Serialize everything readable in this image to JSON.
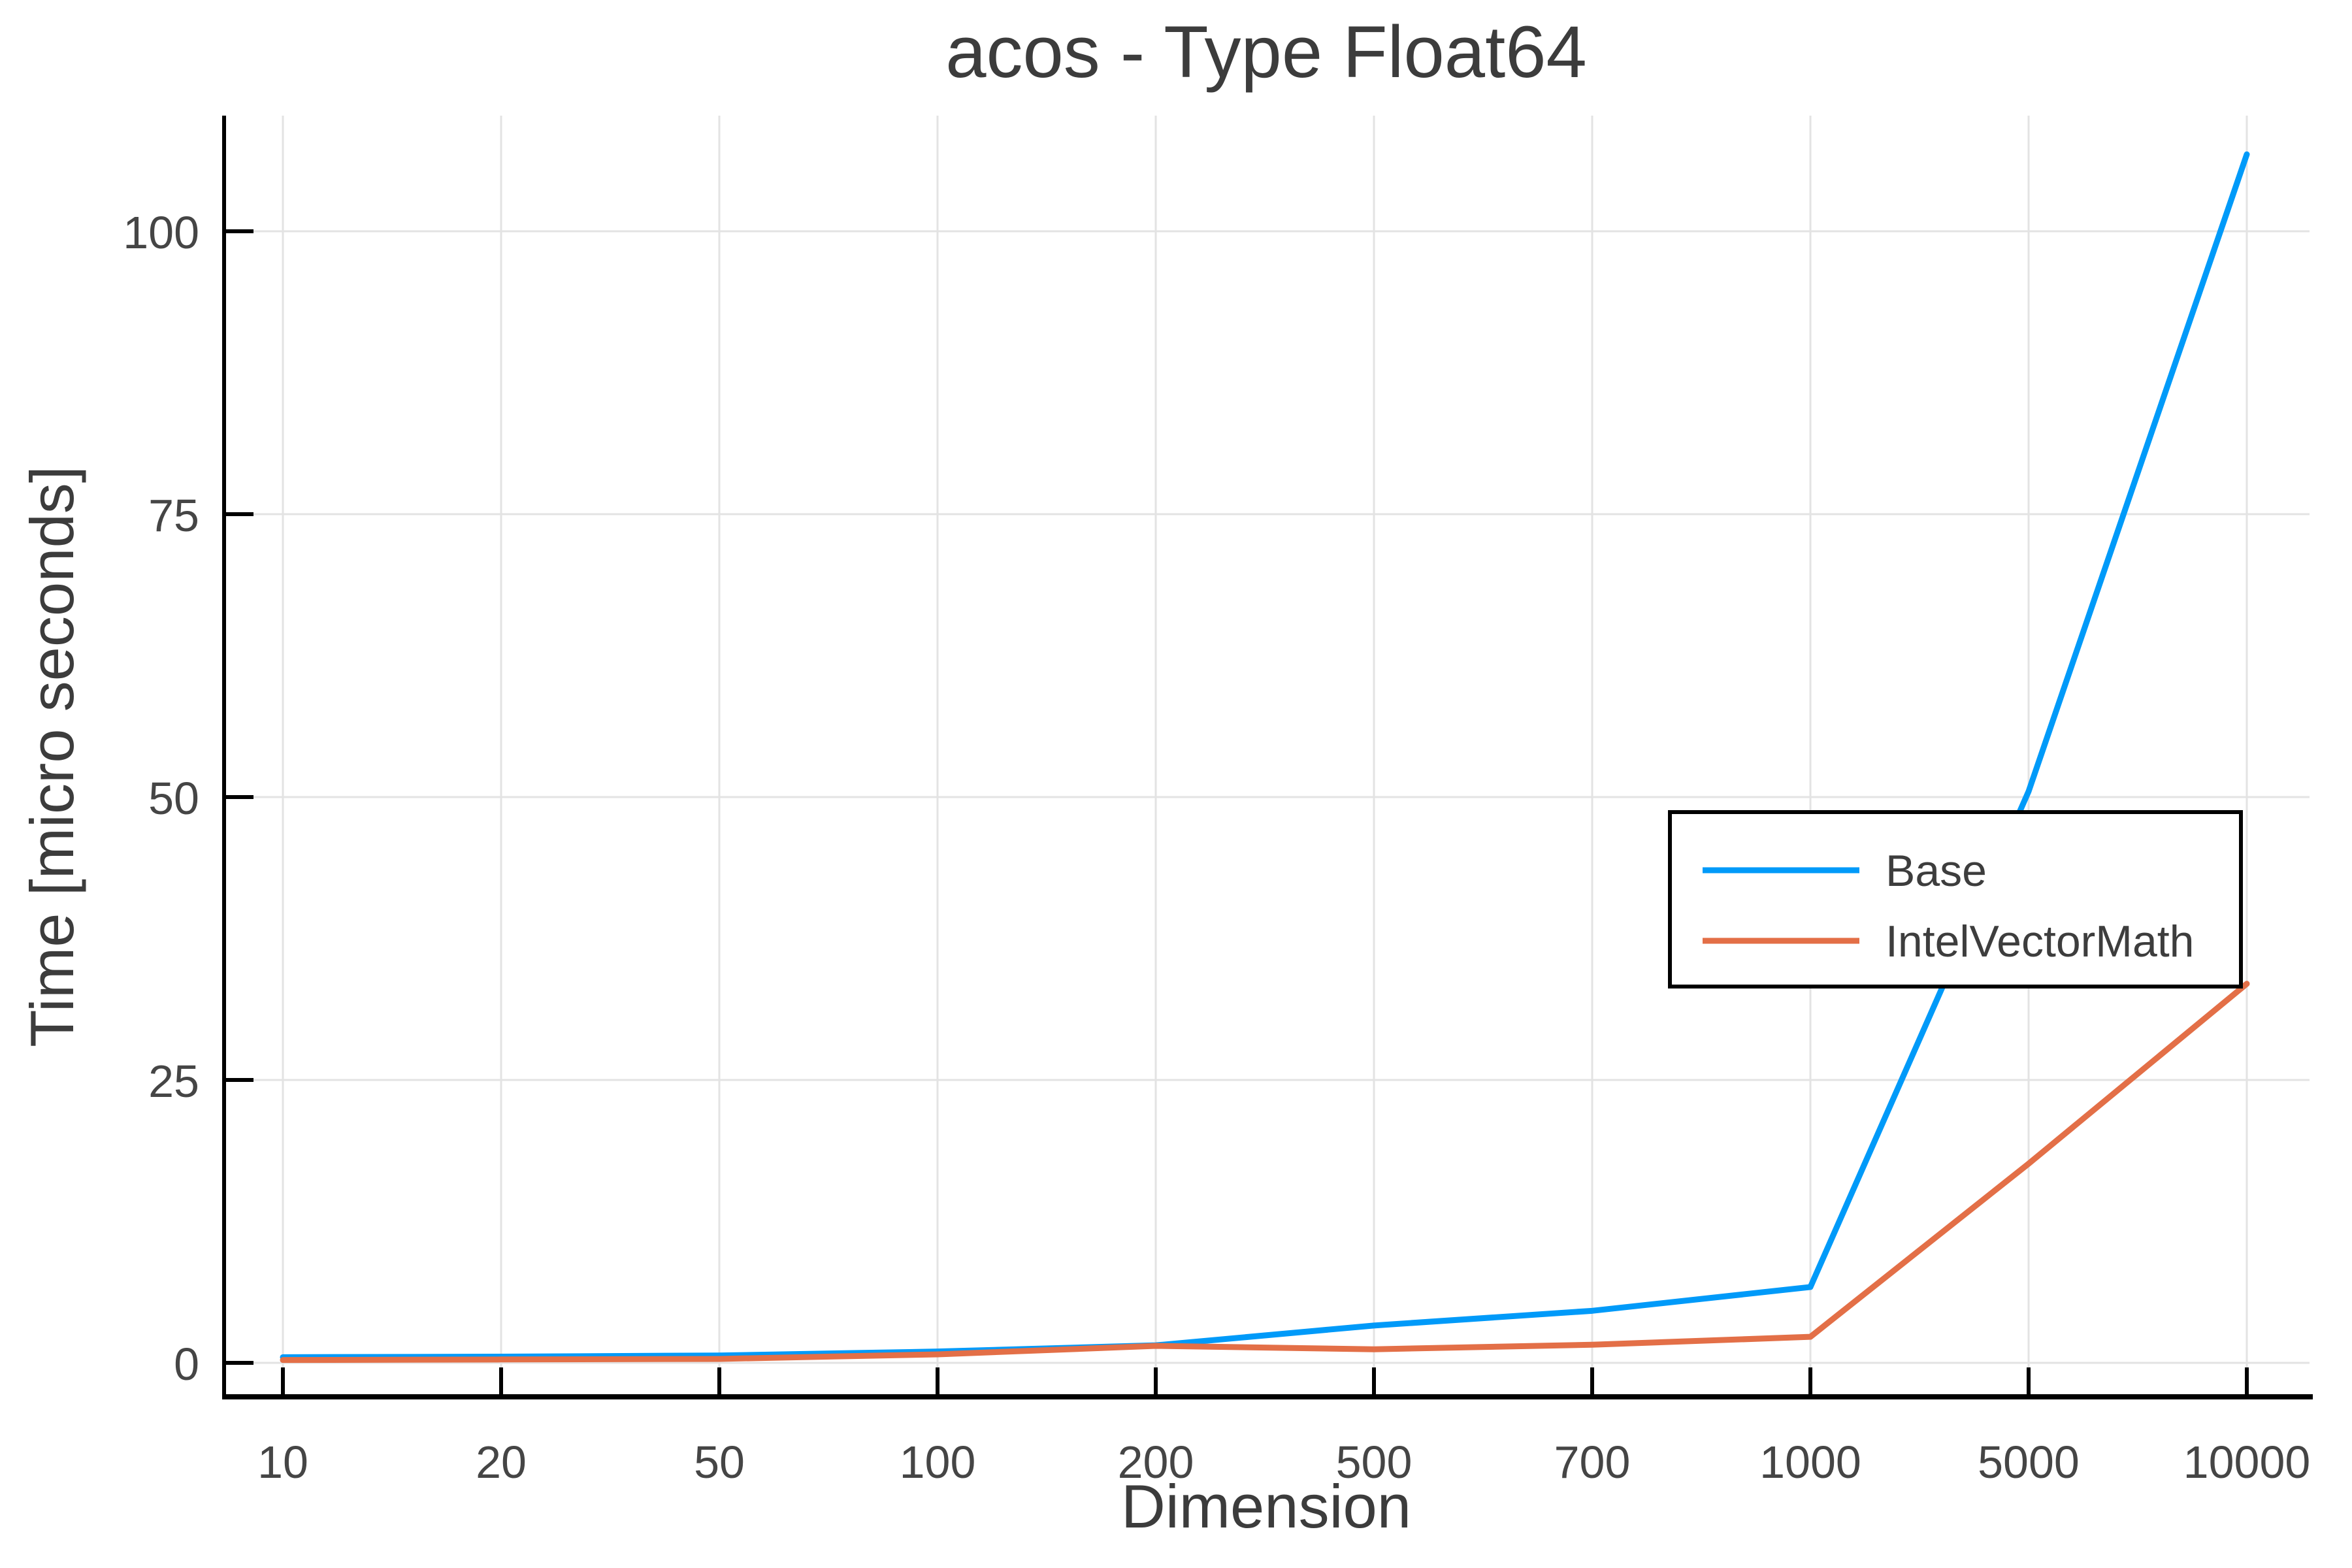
{
  "figure": {
    "background_color": "#ffffff",
    "plot_background_color": "#ffffff",
    "grid_color": "#e3e3e3",
    "axis_color": "#000000",
    "text_color": "#3c3c3c"
  },
  "chart_data": {
    "type": "line",
    "title": "acos - Type Float64",
    "xlabel": "Dimension",
    "ylabel": "Time [micro seconds]",
    "categories": [
      10,
      20,
      50,
      100,
      200,
      500,
      700,
      1000,
      5000,
      10000
    ],
    "x_tick_labels": [
      "10",
      "20",
      "50",
      "100",
      "200",
      "500",
      "700",
      "1000",
      "5000",
      "10000"
    ],
    "y_ticks": [
      0,
      25,
      50,
      75,
      100
    ],
    "y_tick_labels": [
      "0",
      "25",
      "50",
      "75",
      "100"
    ],
    "ylim": [
      -3,
      110
    ],
    "x_scale": "categorical-evenly-spaced",
    "grid": true,
    "frame": "left-and-bottom-spines-only",
    "legend": {
      "position": "right-center",
      "framed": true,
      "background": "#ffffff",
      "border_color": "#000000"
    },
    "series": [
      {
        "name": "Base",
        "color": "#009AF9",
        "values": [
          0.5,
          0.55,
          0.65,
          1.0,
          1.55,
          3.3,
          4.6,
          6.7,
          50.5,
          106.8
        ]
      },
      {
        "name": "IntelVectorMath",
        "color": "#E36F47",
        "values": [
          0.25,
          0.3,
          0.35,
          0.75,
          1.5,
          1.2,
          1.6,
          2.3,
          17.6,
          33.5
        ]
      }
    ]
  }
}
